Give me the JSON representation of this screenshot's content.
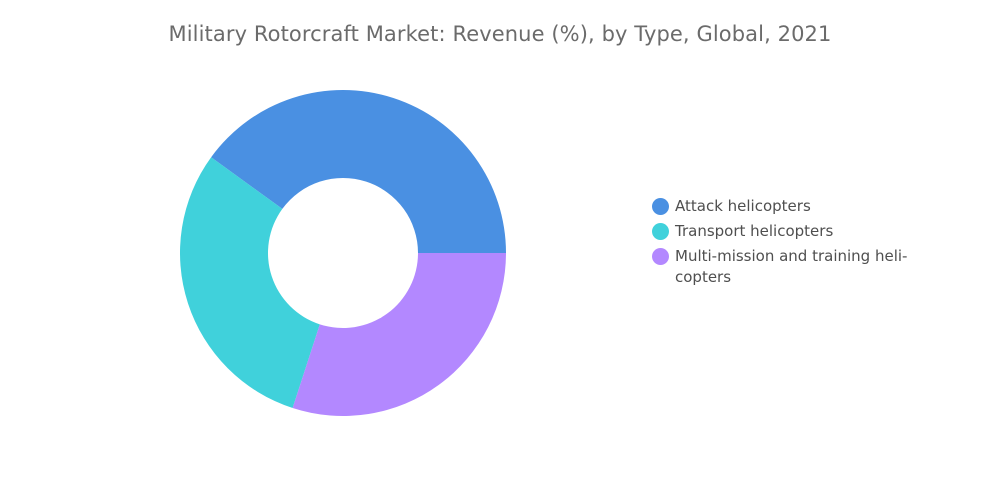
{
  "chart_data": {
    "type": "pie",
    "title": "Military Rotorcraft Market: Revenue (%), by Type, Global, 2021",
    "donut": true,
    "legend_position": "right",
    "categories": [
      "Attack helicopters",
      "Transport helicopters",
      "Multi-mission and training heli-\ncopters"
    ],
    "values": [
      40,
      30,
      30
    ],
    "colors": [
      "#4a90e2",
      "#40d1db",
      "#b388ff"
    ]
  }
}
